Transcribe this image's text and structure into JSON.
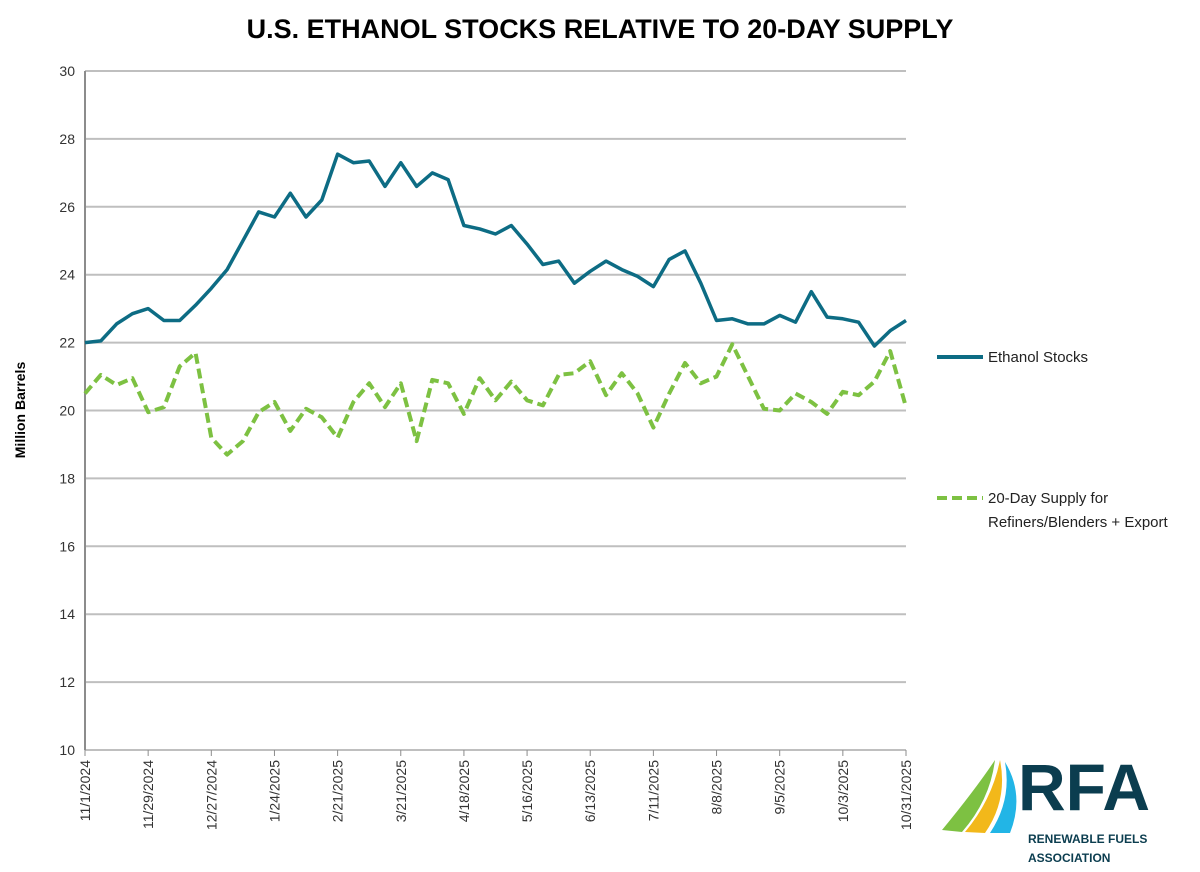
{
  "chart_data": {
    "type": "line",
    "title": "U.S. ETHANOL STOCKS RELATIVE TO 20-DAY SUPPLY",
    "xlabel": "",
    "ylabel": "Million Barrels",
    "ylim": [
      10,
      30
    ],
    "yticks": [
      "10",
      "12",
      "14",
      "16",
      "18",
      "20",
      "22",
      "24",
      "26",
      "28",
      "30"
    ],
    "grid": true,
    "legend_position": "right",
    "x_tick_labels": [
      "11/1/2024",
      "11/29/2024",
      "12/27/2024",
      "1/24/2025",
      "2/21/2025",
      "3/21/2025",
      "4/18/2025",
      "5/16/2025",
      "6/13/2025",
      "7/11/2025",
      "8/8/2025",
      "9/5/2025",
      "10/3/2025",
      "10/31/2025"
    ],
    "x_start": "11/1/2024",
    "x_end": "10/31/2025",
    "frequency": "weekly",
    "series": [
      {
        "name": "Ethanol Stocks",
        "color": "#0d6c84",
        "style": "solid",
        "values": [
          22.0,
          22.05,
          22.55,
          22.85,
          23.0,
          22.65,
          22.65,
          23.1,
          23.6,
          24.15,
          25.0,
          25.85,
          25.7,
          26.4,
          25.7,
          26.2,
          27.55,
          27.3,
          27.35,
          26.6,
          27.3,
          26.6,
          27.0,
          26.8,
          25.45,
          25.35,
          25.2,
          25.45,
          24.9,
          24.3,
          24.4,
          23.75,
          24.1,
          24.4,
          24.15,
          23.95,
          23.65,
          24.45,
          24.7,
          23.75,
          22.65,
          22.7,
          22.55,
          22.55,
          22.8,
          22.6,
          23.5,
          22.75,
          22.7,
          22.6,
          21.9,
          22.35,
          22.65
        ]
      },
      {
        "name": "20-Day Supply for Refiners/Blenders + Export",
        "name_lines": [
          "20-Day Supply for",
          "Refiners/Blenders + Export"
        ],
        "color": "#7dc142",
        "style": "dashed",
        "values": [
          20.5,
          21.05,
          20.75,
          20.95,
          19.95,
          20.1,
          21.3,
          21.7,
          19.2,
          18.7,
          19.1,
          19.95,
          20.25,
          19.4,
          20.05,
          19.8,
          19.2,
          20.25,
          20.8,
          20.1,
          20.8,
          19.1,
          20.9,
          20.8,
          19.9,
          20.95,
          20.3,
          20.85,
          20.3,
          20.15,
          21.05,
          21.1,
          21.45,
          20.45,
          21.1,
          20.5,
          19.5,
          20.5,
          21.4,
          20.8,
          21.0,
          21.95,
          21.0,
          20.05,
          20.0,
          20.5,
          20.25,
          19.9,
          20.55,
          20.45,
          20.85,
          21.75,
          20.1
        ]
      }
    ]
  },
  "logo": {
    "text": "RFA",
    "subtitle_lines": [
      "RENEWABLE FUELS",
      "ASSOCIATION"
    ],
    "color": "#0b3d4f"
  }
}
